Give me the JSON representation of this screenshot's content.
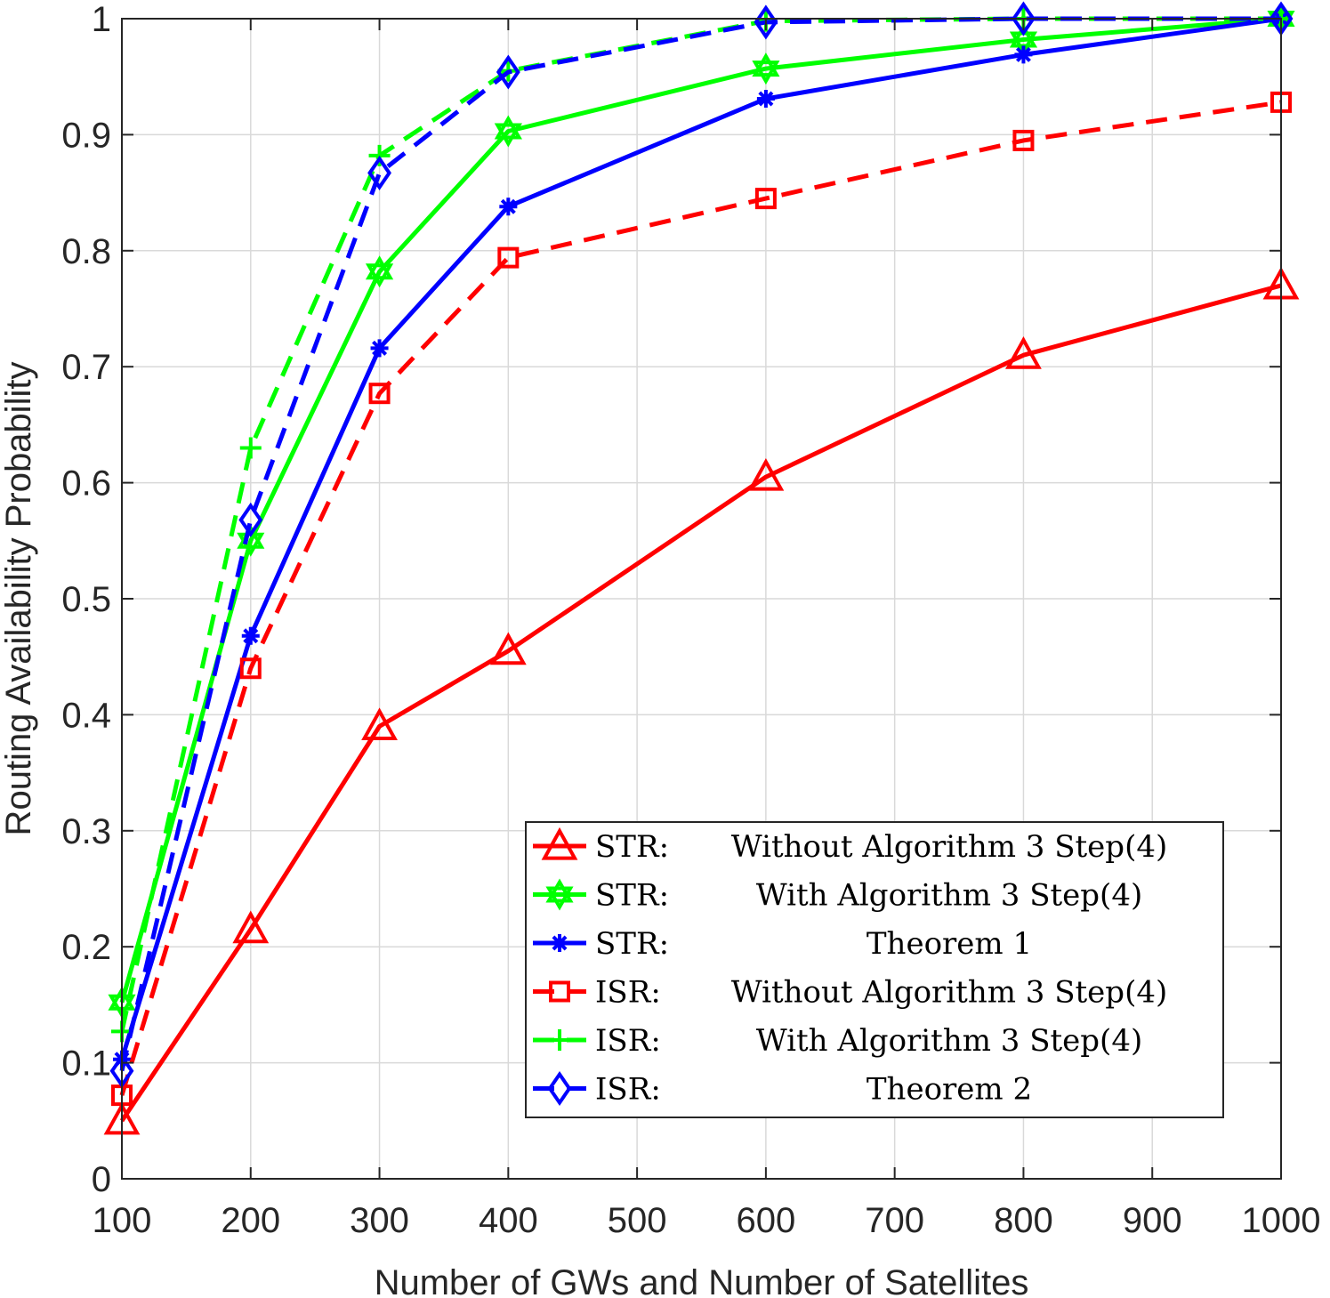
{
  "chart_data": {
    "type": "line",
    "title": "",
    "xlabel": "Number of GWs and Number of Satellites",
    "ylabel": "Routing Availability Probability",
    "xlim": [
      100,
      1000
    ],
    "ylim": [
      0,
      1
    ],
    "xticks": [
      100,
      200,
      300,
      400,
      500,
      600,
      700,
      800,
      900,
      1000
    ],
    "yticks": [
      0,
      0.1,
      0.2,
      0.3,
      0.4,
      0.5,
      0.6,
      0.7,
      0.8,
      0.9,
      1
    ],
    "ytick_labels": [
      "0",
      "0.1",
      "0.2",
      "0.3",
      "0.4",
      "0.5",
      "0.6",
      "0.7",
      "0.8",
      "0.9",
      "1"
    ],
    "grid": true,
    "legend_position": "bottom-right",
    "x": [
      100,
      200,
      300,
      400,
      600,
      800,
      1000
    ],
    "series": [
      {
        "name": "STR: Without Algorithm 3 Step(4)",
        "legend_prefix": "STR:",
        "legend_desc": "Without Algorithm 3 Step(4)",
        "values": [
          0.05,
          0.215,
          0.39,
          0.455,
          0.605,
          0.71,
          0.77
        ],
        "color": "#ff0000",
        "dash": "solid",
        "marker": "triangle"
      },
      {
        "name": "STR: With Algorithm 3 Step(4)",
        "legend_prefix": "STR:",
        "legend_desc": "With Algorithm 3 Step(4)",
        "values": [
          0.152,
          0.55,
          0.782,
          0.903,
          0.957,
          0.982,
          1.0
        ],
        "color": "#00ff00",
        "dash": "solid",
        "marker": "hexagram"
      },
      {
        "name": "STR: Theorem 1",
        "legend_prefix": "STR:",
        "legend_desc": "Theorem 1",
        "values": [
          0.103,
          0.468,
          0.716,
          0.838,
          0.931,
          0.969,
          1.0
        ],
        "color": "#0000ff",
        "dash": "solid",
        "marker": "asterisk"
      },
      {
        "name": "ISR: Without Algorithm 3 Step(4)",
        "legend_prefix": "ISR:",
        "legend_desc": "Without Algorithm 3 Step(4)",
        "values": [
          0.072,
          0.44,
          0.677,
          0.794,
          0.845,
          0.895,
          0.928
        ],
        "color": "#ff0000",
        "dash": "dashed",
        "marker": "square"
      },
      {
        "name": "ISR: With Algorithm 3 Step(4)",
        "legend_prefix": "ISR:",
        "legend_desc": "With Algorithm 3 Step(4)",
        "values": [
          0.127,
          0.63,
          0.882,
          0.955,
          0.998,
          1.0,
          1.0
        ],
        "color": "#00ff00",
        "dash": "dashed",
        "marker": "plus"
      },
      {
        "name": "ISR: Theorem 2",
        "legend_prefix": "ISR:",
        "legend_desc": "Theorem 2",
        "values": [
          0.093,
          0.568,
          0.867,
          0.954,
          0.997,
          1.0,
          1.0
        ],
        "color": "#0000ff",
        "dash": "dashed",
        "marker": "diamond"
      }
    ]
  }
}
